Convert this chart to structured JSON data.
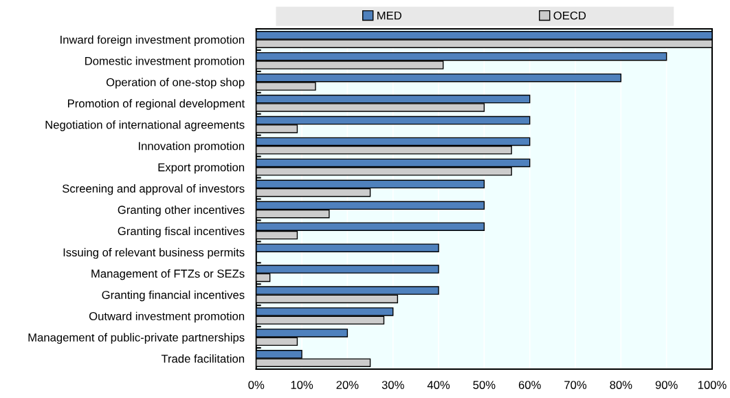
{
  "chart_data": {
    "type": "bar",
    "orientation": "horizontal",
    "categories": [
      "Inward foreign investment promotion",
      "Domestic investment promotion",
      "Operation of one-stop shop",
      "Promotion of regional development",
      "Negotiation of international agreements",
      "Innovation promotion",
      "Export promotion",
      "Screening and approval of investors",
      "Granting other incentives",
      "Granting fiscal incentives",
      "Issuing of relevant business permits",
      "Management of FTZs or SEZs",
      "Granting financial incentives",
      "Outward investment promotion",
      "Management of public-private partnerships",
      "Trade facilitation"
    ],
    "series": [
      {
        "name": "MED",
        "color": "#4f81bd",
        "values": [
          100,
          90,
          80,
          60,
          60,
          60,
          60,
          50,
          50,
          50,
          40,
          40,
          40,
          30,
          20,
          10
        ]
      },
      {
        "name": "OECD",
        "color": "#cccccc",
        "values": [
          100,
          41,
          13,
          50,
          9,
          56,
          56,
          25,
          16,
          9,
          null,
          3,
          31,
          28,
          9,
          25
        ]
      }
    ],
    "xlim": [
      0,
      100
    ],
    "xticks": [
      {
        "value": 0,
        "label": "0%"
      },
      {
        "value": 10,
        "label": "10%"
      },
      {
        "value": 20,
        "label": "20%"
      },
      {
        "value": 30,
        "label": "30%"
      },
      {
        "value": 40,
        "label": "40%"
      },
      {
        "value": 50,
        "label": "50%"
      },
      {
        "value": 60,
        "label": "60%"
      },
      {
        "value": 70,
        "label": "70%"
      },
      {
        "value": 80,
        "label": "80%"
      },
      {
        "value": 90,
        "label": "90%"
      },
      {
        "value": 100,
        "label": "100%"
      }
    ],
    "grid": "x",
    "legend": "top"
  }
}
